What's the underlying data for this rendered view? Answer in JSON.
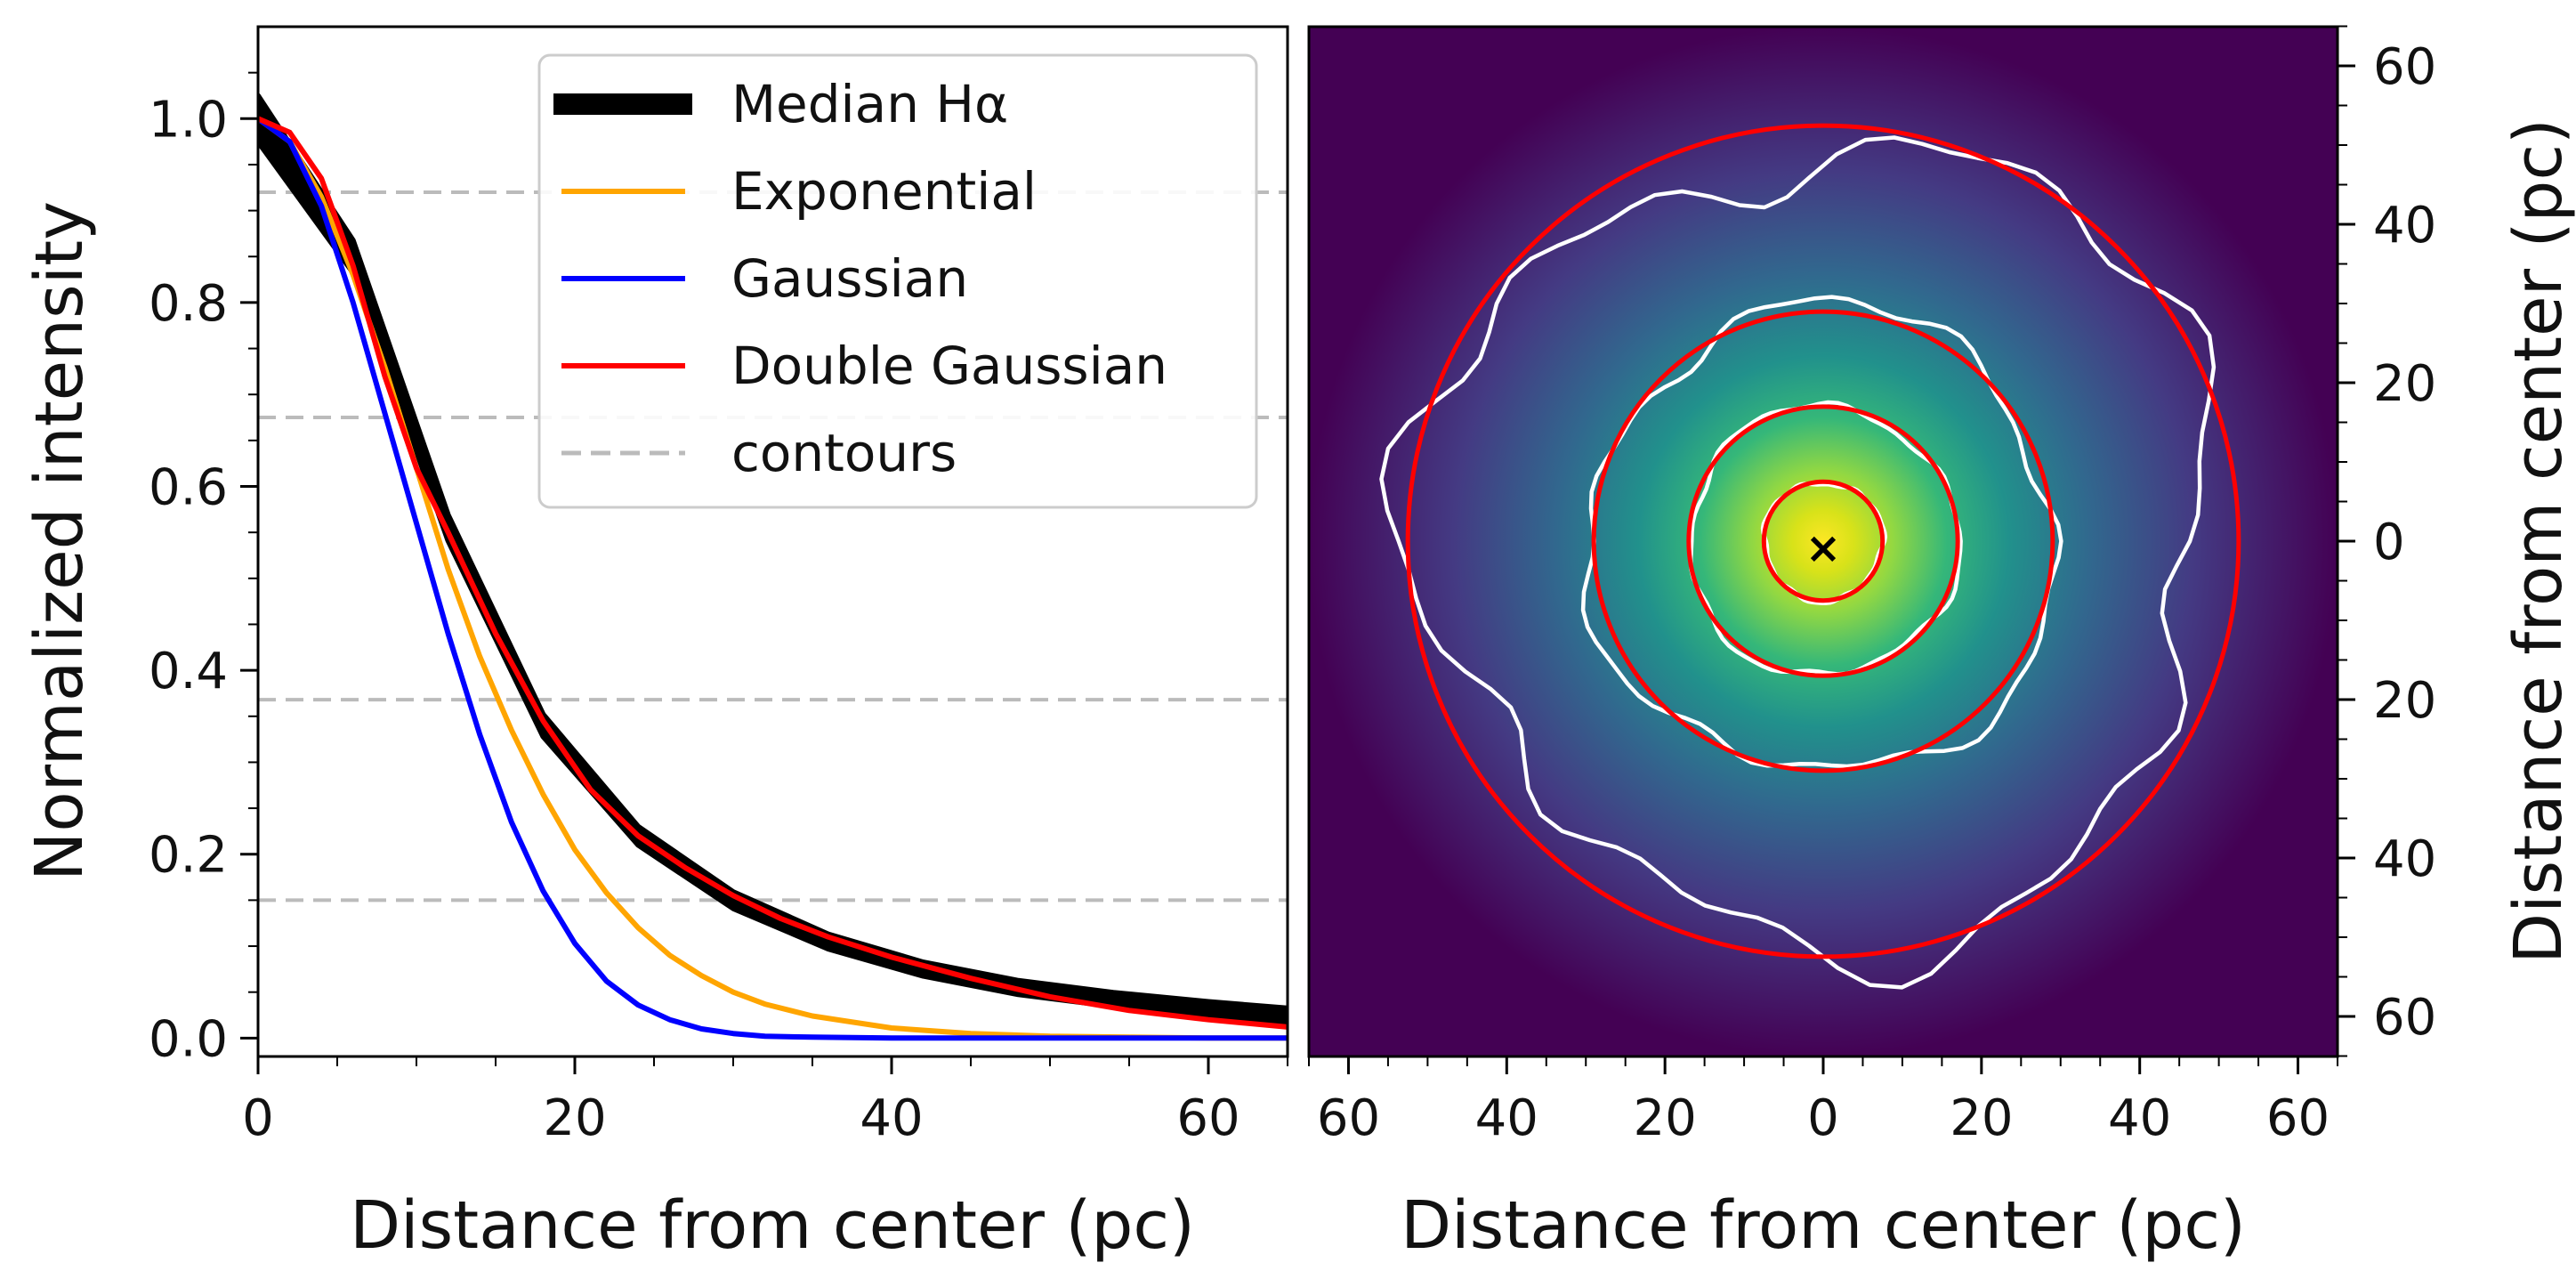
{
  "chart_data": [
    {
      "type": "line",
      "panel": "profile",
      "xlabel": "Distance from center (pc)",
      "ylabel": "Normalized intensity",
      "xlim": [
        0,
        65
      ],
      "ylim": [
        -0.02,
        1.1
      ],
      "xticks": [
        0,
        20,
        40,
        60
      ],
      "xtick_labels": [
        "0",
        "20",
        "40",
        "60"
      ],
      "yticks": [
        0.0,
        0.2,
        0.4,
        0.6,
        0.8,
        1.0
      ],
      "ytick_labels": [
        "0.0",
        "0.2",
        "0.4",
        "0.6",
        "0.8",
        "1.0"
      ],
      "contour_levels": [
        0.92,
        0.675,
        0.368,
        0.15
      ],
      "legend_position": "upper right",
      "series": [
        {
          "name": "Median Hα",
          "style": "band",
          "color": "#000000",
          "x": [
            0,
            6,
            12,
            18,
            24,
            30,
            36,
            42,
            48,
            54,
            60,
            65
          ],
          "y": [
            1.0,
            0.85,
            0.555,
            0.34,
            0.22,
            0.15,
            0.105,
            0.075,
            0.055,
            0.042,
            0.032,
            0.025
          ]
        },
        {
          "name": "Exponential",
          "style": "line",
          "color": "#ffa500",
          "x": [
            0,
            2,
            4,
            6,
            8,
            10,
            12,
            14,
            16,
            18,
            20,
            22,
            24,
            26,
            28,
            30,
            32,
            35,
            40,
            45,
            50,
            55,
            60,
            65
          ],
          "y": [
            1.0,
            0.975,
            0.915,
            0.83,
            0.73,
            0.62,
            0.51,
            0.415,
            0.335,
            0.265,
            0.205,
            0.158,
            0.12,
            0.09,
            0.068,
            0.05,
            0.037,
            0.024,
            0.011,
            0.005,
            0.002,
            0.001,
            0.0,
            0.0
          ]
        },
        {
          "name": "Gaussian",
          "style": "line",
          "color": "#0000ff",
          "x": [
            0,
            2,
            4,
            6,
            8,
            10,
            12,
            14,
            16,
            18,
            20,
            22,
            24,
            26,
            28,
            30,
            32,
            35,
            40,
            45,
            50,
            55,
            60,
            65
          ],
          "y": [
            1.0,
            0.975,
            0.905,
            0.8,
            0.68,
            0.56,
            0.44,
            0.33,
            0.235,
            0.16,
            0.103,
            0.062,
            0.036,
            0.02,
            0.01,
            0.005,
            0.002,
            0.001,
            0.0,
            0.0,
            0.0,
            0.0,
            0.0,
            0.0
          ]
        },
        {
          "name": "Double Gaussian",
          "style": "line",
          "color": "#ff0000",
          "x": [
            0,
            2,
            4,
            6,
            8,
            10,
            12,
            15,
            18,
            21,
            24,
            27,
            30,
            33,
            36,
            40,
            45,
            50,
            55,
            60,
            65
          ],
          "y": [
            1.0,
            0.985,
            0.935,
            0.84,
            0.72,
            0.62,
            0.55,
            0.44,
            0.345,
            0.27,
            0.22,
            0.185,
            0.155,
            0.13,
            0.11,
            0.088,
            0.065,
            0.045,
            0.03,
            0.02,
            0.012
          ]
        },
        {
          "name": "contours",
          "style": "dashed",
          "color": "#bbbbbb"
        }
      ]
    },
    {
      "type": "heatmap",
      "panel": "image",
      "xlabel": "Distance from center (pc)",
      "ylabel": "Distance from center (pc)",
      "xlim": [
        -65,
        65
      ],
      "ylim": [
        -65,
        65
      ],
      "xtick_values": [
        -60,
        -40,
        -20,
        0,
        20,
        40,
        60
      ],
      "xtick_labels": [
        "60",
        "40",
        "20",
        "0",
        "20",
        "40",
        "60"
      ],
      "ytick_values": [
        60,
        40,
        20,
        0,
        -20,
        -40,
        -60
      ],
      "ytick_labels": [
        "60",
        "40",
        "20",
        "0",
        "20",
        "40",
        "60"
      ],
      "colormap": "viridis",
      "center_marker": "×",
      "fit_circle_radii_pc": [
        7.5,
        17,
        29,
        52.5
      ],
      "fit_circle_color": "#ff0000",
      "contour_color": "#ffffff",
      "contour_radii_pc": [
        7.5,
        17,
        29.5,
        50
      ]
    }
  ]
}
